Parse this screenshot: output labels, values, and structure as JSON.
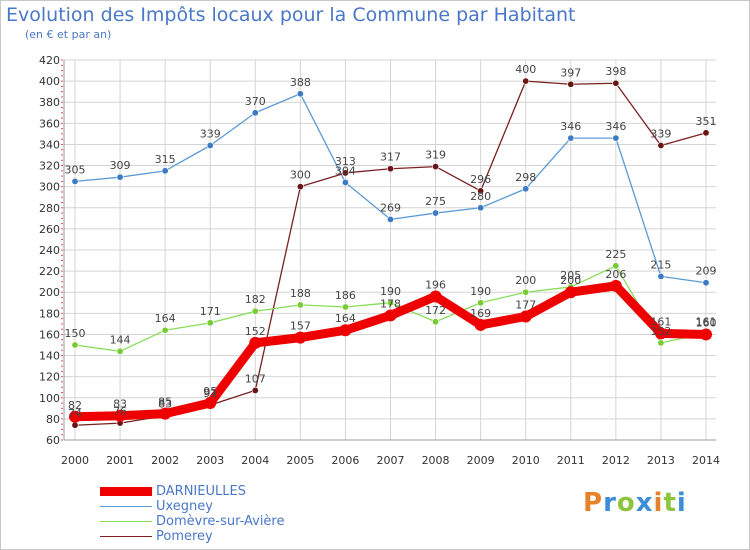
{
  "chart_data": {
    "type": "line",
    "title": "Evolution des Impôts locaux pour la Commune par Habitant",
    "subtitle": "(en € et par an)",
    "categories": [
      "2000",
      "2001",
      "2002",
      "2003",
      "2004",
      "2005",
      "2006",
      "2007",
      "2008",
      "2009",
      "2010",
      "2011",
      "2012",
      "2013",
      "2014"
    ],
    "ylim": [
      60,
      420
    ],
    "yticks": [
      60,
      80,
      100,
      120,
      140,
      160,
      180,
      200,
      220,
      240,
      260,
      280,
      300,
      320,
      340,
      360,
      380,
      400,
      420
    ],
    "grid": true,
    "legend_position": "bottom-left",
    "series": [
      {
        "name": "DARNIEULLES",
        "color": "#ee0000",
        "marker": "#ee0000",
        "values": [
          82,
          83,
          85,
          95,
          152,
          157,
          164,
          178,
          196,
          169,
          177,
          200,
          206,
          161,
          160
        ]
      },
      {
        "name": "Uxegney",
        "color": "#5b9bd5",
        "marker": "#3b7bc4",
        "values": [
          305,
          309,
          315,
          339,
          370,
          388,
          304,
          269,
          275,
          280,
          298,
          346,
          346,
          215,
          209
        ]
      },
      {
        "name": "Domèvre-sur-Avière",
        "color": "#88dd55",
        "marker": "#77cc33",
        "values": [
          150,
          144,
          164,
          171,
          182,
          188,
          186,
          190,
          172,
          190,
          200,
          205,
          225,
          152,
          161
        ]
      },
      {
        "name": "Pomerey",
        "color": "#7a2020",
        "marker": "#6a1515",
        "values": [
          74,
          76,
          83,
          93,
          107,
          300,
          313,
          317,
          319,
          296,
          400,
          397,
          398,
          339,
          351
        ]
      }
    ]
  },
  "logo": {
    "text": "Proxiti",
    "colors": [
      "#e8822a",
      "#3a8fd8",
      "#8cc63f",
      "#3a8fd8",
      "#e8822a",
      "#8cc63f",
      "#3a8fd8"
    ]
  }
}
